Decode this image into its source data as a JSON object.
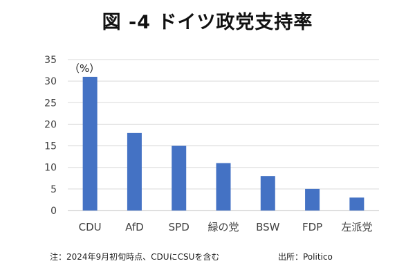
{
  "chart_data": {
    "type": "bar",
    "title": "図 -4 ドイツ政党支持率",
    "unit_label": "（%）",
    "categories": [
      "CDU",
      "AfD",
      "SPD",
      "緑の党",
      "BSW",
      "FDP",
      "左派党"
    ],
    "values": [
      31,
      18,
      15,
      11,
      8,
      5,
      3
    ],
    "ylim": [
      0,
      35
    ],
    "yticks": [
      0,
      5,
      10,
      15,
      20,
      25,
      30,
      35
    ],
    "grid": true,
    "legend": "none",
    "bar_color": "#4472C4"
  },
  "footer": {
    "note": "注：2024年9月初旬時点、CDUにCSUを含む",
    "source": "出所：Politico"
  }
}
